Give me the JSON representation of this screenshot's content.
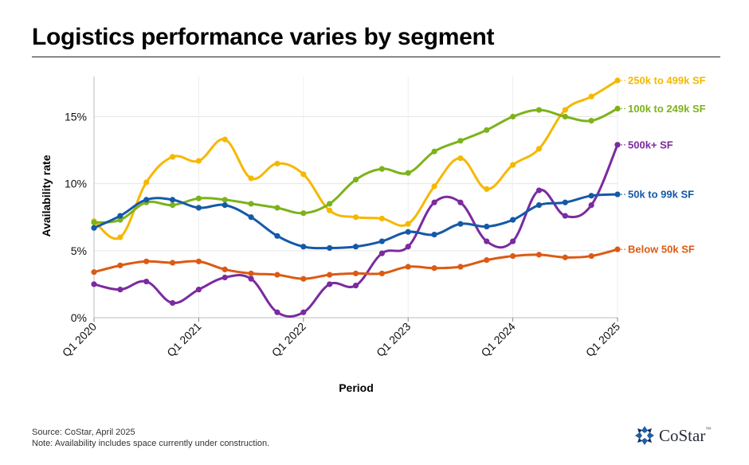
{
  "title": "Logistics performance varies by segment",
  "footer": {
    "source": "Source: CoStar, April 2025",
    "note": "Note: Availability includes space currently under construction."
  },
  "logo": {
    "text": "CoStar",
    "tm": "™",
    "icon": "costar-star-icon"
  },
  "chart_data": {
    "type": "line",
    "xlabel": "Period",
    "ylabel": "Availability rate",
    "ylim": [
      0,
      18
    ],
    "yticks": [
      0,
      5,
      10,
      15
    ],
    "ytick_labels": [
      "0%",
      "5%",
      "10%",
      "15%"
    ],
    "x_tick_positions": [
      0,
      4,
      8,
      12,
      16,
      20
    ],
    "x_tick_labels": [
      "Q1 2020",
      "Q1 2021",
      "Q1 2022",
      "Q1 2023",
      "Q1 2024",
      "Q1 2025"
    ],
    "categories": [
      "Q1 2020",
      "Q2 2020",
      "Q3 2020",
      "Q4 2020",
      "Q1 2021",
      "Q2 2021",
      "Q3 2021",
      "Q4 2021",
      "Q1 2022",
      "Q2 2022",
      "Q3 2022",
      "Q4 2022",
      "Q1 2023",
      "Q2 2023",
      "Q3 2023",
      "Q4 2023",
      "Q1 2024",
      "Q2 2024",
      "Q3 2024",
      "Q4 2024",
      "Q1 2025"
    ],
    "grid": true,
    "legend": "end-of-line labels",
    "series": [
      {
        "name": "250k to 499k SF",
        "color": "#f5b800",
        "values": [
          7.2,
          6.0,
          10.1,
          12.0,
          11.7,
          13.3,
          10.4,
          11.5,
          10.7,
          8.0,
          7.5,
          7.4,
          7.0,
          9.8,
          11.9,
          9.6,
          11.4,
          12.6,
          15.5,
          16.5,
          17.7
        ]
      },
      {
        "name": "100k to 249k SF",
        "color": "#7cb31a",
        "values": [
          7.1,
          7.3,
          8.6,
          8.4,
          8.9,
          8.8,
          8.5,
          8.2,
          7.8,
          8.5,
          10.3,
          11.1,
          10.8,
          12.4,
          13.2,
          14.0,
          15.0,
          15.5,
          15.0,
          14.7,
          15.6
        ]
      },
      {
        "name": "500k+ SF",
        "color": "#7b2aa0",
        "values": [
          2.5,
          2.1,
          2.7,
          1.1,
          2.1,
          3.0,
          2.9,
          0.4,
          0.4,
          2.5,
          2.4,
          4.8,
          5.3,
          8.6,
          8.6,
          5.7,
          5.7,
          9.5,
          7.6,
          8.4,
          12.9
        ]
      },
      {
        "name": "50k to 99k SF",
        "color": "#1559a8",
        "values": [
          6.7,
          7.6,
          8.8,
          8.8,
          8.2,
          8.4,
          7.5,
          6.1,
          5.3,
          5.2,
          5.3,
          5.7,
          6.4,
          6.2,
          7.0,
          6.8,
          7.3,
          8.4,
          8.6,
          9.1,
          9.2
        ]
      },
      {
        "name": "Below 50k SF",
        "color": "#dc5a14",
        "values": [
          3.4,
          3.9,
          4.2,
          4.1,
          4.2,
          3.6,
          3.3,
          3.2,
          2.9,
          3.2,
          3.3,
          3.3,
          3.8,
          3.7,
          3.8,
          4.3,
          4.6,
          4.7,
          4.5,
          4.6,
          5.1
        ]
      }
    ]
  }
}
